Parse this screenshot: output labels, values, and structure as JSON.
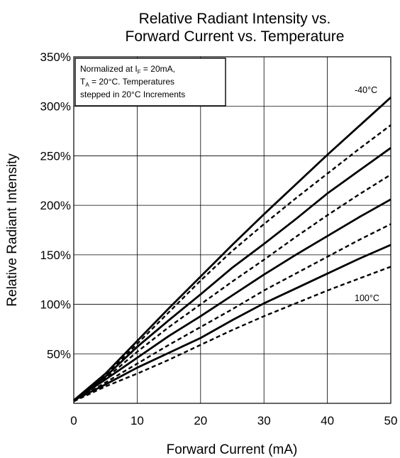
{
  "chart_data": {
    "type": "line",
    "title": "Relative Radiant Intensity vs. Forward Current vs. Temperature",
    "title_lines": [
      "Relative Radiant Intensity vs.",
      "Forward Current vs. Temperature"
    ],
    "xlabel": "Forward Current (mA)",
    "ylabel": "Relative Radiant Intensity",
    "xlim": [
      0,
      50
    ],
    "ylim": [
      0,
      350
    ],
    "x_ticks": [
      0,
      10,
      20,
      30,
      40,
      50
    ],
    "x_tick_labels": [
      "0",
      "10",
      "20",
      "30",
      "40",
      "50"
    ],
    "y_ticks": [
      50,
      100,
      150,
      200,
      250,
      300,
      350
    ],
    "y_tick_labels": [
      "50%",
      "100%",
      "150%",
      "200%",
      "250%",
      "300%",
      "350%"
    ],
    "grid": true,
    "annotation": {
      "line1_main": "Normalized at I",
      "line1_sub": "F",
      "line1_rest": " = 20mA,",
      "line2_main": "T",
      "line2_sub": "A",
      "line2_rest": " = 20°C.  Temperatures",
      "line3": "stepped in 20°C Increments"
    },
    "curve_labels": {
      "top": "-40°C",
      "bottom": "100°C"
    },
    "x": [
      0,
      5,
      10,
      15,
      20,
      25,
      30,
      35,
      40,
      45,
      50
    ],
    "series": [
      {
        "style": "solid",
        "values": [
          3,
          30,
          63,
          96,
          128,
          160,
          191,
          221,
          251,
          280,
          309
        ]
      },
      {
        "style": "dashed",
        "values": [
          2,
          28,
          60,
          92,
          124,
          154,
          181,
          207,
          232,
          257,
          281
        ]
      },
      {
        "style": "solid",
        "values": [
          3,
          27,
          57,
          84,
          110,
          137,
          161,
          186,
          212,
          235,
          258
        ]
      },
      {
        "style": "dashed",
        "values": [
          2,
          25,
          52,
          77,
          100,
          123,
          145,
          168,
          190,
          211,
          231
        ]
      },
      {
        "style": "solid",
        "values": [
          3,
          24,
          46,
          68,
          88,
          109,
          130,
          150,
          169,
          188,
          206
        ]
      },
      {
        "style": "dashed",
        "values": [
          2,
          21,
          40,
          59,
          77,
          95,
          114,
          131,
          148,
          165,
          181
        ]
      },
      {
        "style": "solid",
        "values": [
          3,
          19,
          36,
          51,
          66,
          84,
          101,
          116,
          131,
          146,
          160
        ]
      },
      {
        "style": "dashed",
        "values": [
          2,
          17,
          30,
          44,
          59,
          74,
          88,
          101,
          114,
          126,
          138
        ]
      }
    ]
  }
}
